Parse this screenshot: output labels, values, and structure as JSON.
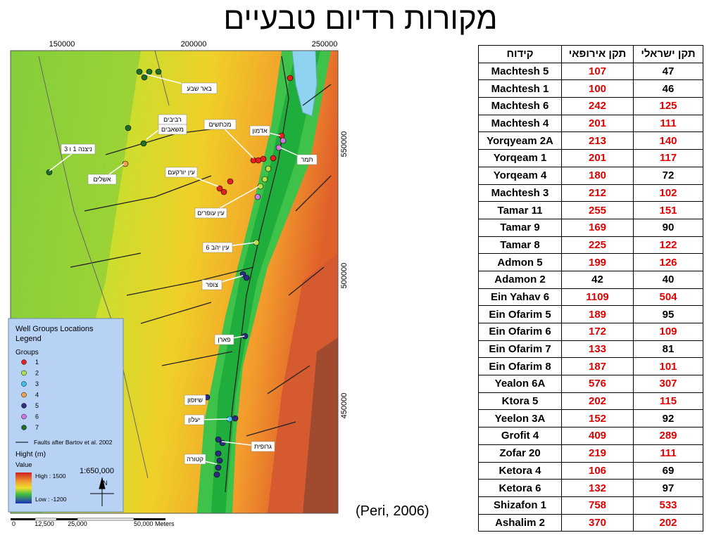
{
  "title": "מקורות רדיום טבעיים",
  "citation": "(Peri, 2006)",
  "map": {
    "x_coords": [
      "150000",
      "200000",
      "250000"
    ],
    "y_coords": [
      "550000",
      "500000",
      "450000"
    ],
    "scale_bar": [
      "0",
      "12,500",
      "25,000",
      "50,000 Meters"
    ],
    "scale_ratio": "1:650,000",
    "labels": [
      "באר שבע",
      "רביבים",
      "משאבים",
      "מכתשים",
      "אדמון",
      "ניצנה 1 ו 3",
      "אשלים",
      "עין יורקעם",
      "תמר",
      "עין עופרים",
      "עין יהב 6",
      "צופר",
      "פארן",
      "שיזפון",
      "יעלון",
      "גרופית",
      "קטורה"
    ],
    "legend": {
      "title": "Well Groups Locations",
      "subtitle": "Legend",
      "groups_title": "Groups",
      "groups": [
        {
          "label": "1",
          "color": "#e8201c"
        },
        {
          "label": "2",
          "color": "#b4e04a"
        },
        {
          "label": "3",
          "color": "#38c4f0"
        },
        {
          "label": "4",
          "color": "#f0a048"
        },
        {
          "label": "5",
          "color": "#2c2c80"
        },
        {
          "label": "6",
          "color": "#d078e0"
        },
        {
          "label": "7",
          "color": "#1f6e24"
        }
      ],
      "faults": "Faults after Bartov et al. 2002",
      "height_title": "Hight (m)",
      "value": "Value",
      "high": "High : 1500",
      "low": "Low : -1200"
    }
  },
  "table": {
    "header": [
      "קידוח",
      "תקן אירופאי",
      "תקן ישראלי"
    ],
    "rows": [
      [
        "Machtesh 5",
        107,
        47
      ],
      [
        "Machtesh 1",
        100,
        46
      ],
      [
        "Machtesh 6",
        242,
        125
      ],
      [
        "Machtesh 4",
        201,
        111
      ],
      [
        "Yorqyeam 2A",
        213,
        140
      ],
      [
        "Yorqeam 1",
        201,
        117
      ],
      [
        "Yorqeam 4",
        180,
        72
      ],
      [
        "Machtesh 3",
        212,
        102
      ],
      [
        "Tamar 11",
        255,
        151
      ],
      [
        "Tamar 9",
        169,
        90
      ],
      [
        "Tamar 8",
        225,
        122
      ],
      [
        "Admon 5",
        199,
        126
      ],
      [
        "Adamon 2",
        42,
        40
      ],
      [
        "Ein Yahav 6",
        1109,
        504
      ],
      [
        "Ein Ofarim 5",
        189,
        95
      ],
      [
        "Ein Ofarim 6",
        172,
        109
      ],
      [
        "Ein Ofarim 7",
        133,
        81
      ],
      [
        "Ein Ofarim 8",
        187,
        101
      ],
      [
        "Yealon 6A",
        576,
        307
      ],
      [
        "Ktora 5",
        202,
        115
      ],
      [
        "Yeelon 3A",
        152,
        92
      ],
      [
        "Grofit 4",
        409,
        289
      ],
      [
        "Zofar 20",
        219,
        111
      ],
      [
        "Ketora 4",
        106,
        69
      ],
      [
        "Ketora 6",
        132,
        97
      ],
      [
        "Shizafon 1",
        758,
        533
      ],
      [
        "Ashalim 2",
        370,
        202
      ]
    ],
    "value_colors": [
      [
        "#e00000",
        "#000000"
      ],
      [
        "#e00000",
        "#000000"
      ],
      [
        "#e00000",
        "#e00000"
      ],
      [
        "#e00000",
        "#e00000"
      ],
      [
        "#e00000",
        "#e00000"
      ],
      [
        "#e00000",
        "#e00000"
      ],
      [
        "#e00000",
        "#000000"
      ],
      [
        "#e00000",
        "#e00000"
      ],
      [
        "#e00000",
        "#e00000"
      ],
      [
        "#e00000",
        "#000000"
      ],
      [
        "#e00000",
        "#e00000"
      ],
      [
        "#e00000",
        "#e00000"
      ],
      [
        "#000000",
        "#000000"
      ],
      [
        "#e00000",
        "#e00000"
      ],
      [
        "#e00000",
        "#000000"
      ],
      [
        "#e00000",
        "#e00000"
      ],
      [
        "#e00000",
        "#000000"
      ],
      [
        "#e00000",
        "#e00000"
      ],
      [
        "#e00000",
        "#e00000"
      ],
      [
        "#e00000",
        "#e00000"
      ],
      [
        "#e00000",
        "#000000"
      ],
      [
        "#e00000",
        "#e00000"
      ],
      [
        "#e00000",
        "#e00000"
      ],
      [
        "#e00000",
        "#000000"
      ],
      [
        "#e00000",
        "#000000"
      ],
      [
        "#e00000",
        "#e00000"
      ],
      [
        "#e00000",
        "#e00000"
      ]
    ]
  }
}
